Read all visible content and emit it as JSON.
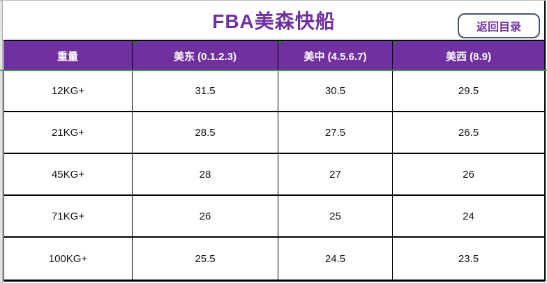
{
  "header": {
    "title": "FBA美森快船",
    "back_button_label": "返回目录"
  },
  "table": {
    "columns": [
      "重量",
      "美东 (0.1.2.3)",
      "美中 (4.5.6.7)",
      "美西 (8.9)"
    ],
    "rows": [
      {
        "weight": "12KG+",
        "values": [
          "31.5",
          "30.5",
          "29.5"
        ]
      },
      {
        "weight": "21KG+",
        "values": [
          "28.5",
          "27.5",
          "26.5"
        ]
      },
      {
        "weight": "45KG+",
        "values": [
          "28",
          "27",
          "26"
        ]
      },
      {
        "weight": "71KG+",
        "values": [
          "26",
          "25",
          "24"
        ]
      },
      {
        "weight": "100KG+",
        "values": [
          "25.5",
          "24.5",
          "23.5"
        ]
      }
    ]
  },
  "colors": {
    "header_bg": "#7030A0",
    "title_text": "#7030A0",
    "button_border": "#44546A",
    "button_text": "#7030A0",
    "green_line": "#3AA03A",
    "comment_triangle": "#1E7A1E"
  }
}
